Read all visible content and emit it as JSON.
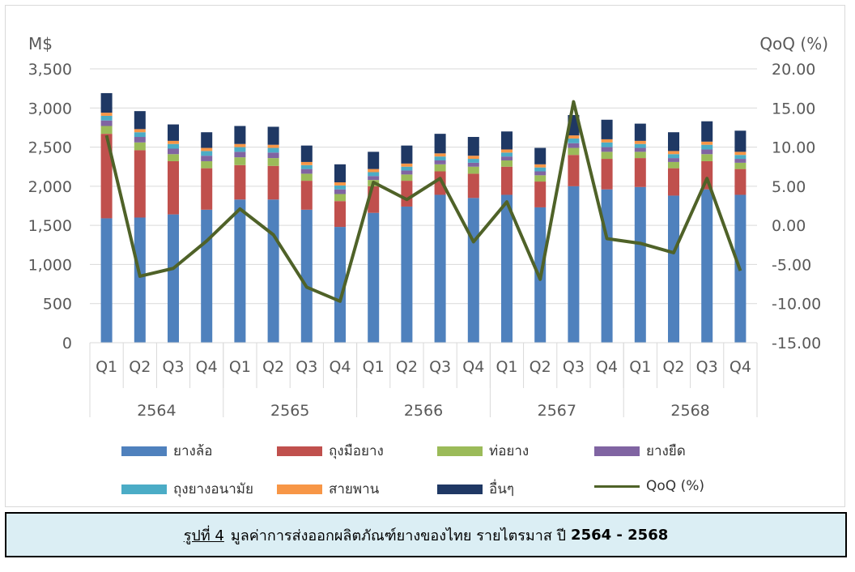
{
  "caption": {
    "label": "รูปที่ 4",
    "text": "มูลค่าการส่งออกผลิตภัณฑ์ยางของไทย รายไตรมาส ปี",
    "years": "2564 - 2568"
  },
  "chart_data": {
    "type": "bar",
    "stacked": true,
    "y_left_unit": "M$",
    "y_right_unit": "QoQ (%)",
    "ylim_left": [
      0,
      3500
    ],
    "yticks_left": [
      "0",
      "500",
      "1,000",
      "1,500",
      "2,000",
      "2,500",
      "3,000",
      "3,500"
    ],
    "ylim_right": [
      -15,
      20
    ],
    "yticks_right": [
      "-15.00",
      "-10.00",
      "-5.00",
      "0.00",
      "5.00",
      "10.00",
      "15.00",
      "20.00"
    ],
    "years": [
      "2564",
      "2565",
      "2566",
      "2567",
      "2568"
    ],
    "quarters": [
      "Q1",
      "Q2",
      "Q3",
      "Q4"
    ],
    "categories": [
      "2564 Q1",
      "2564 Q2",
      "2564 Q3",
      "2564 Q4",
      "2565 Q1",
      "2565 Q2",
      "2565 Q3",
      "2565 Q4",
      "2566 Q1",
      "2566 Q2",
      "2566 Q3",
      "2566 Q4",
      "2567 Q1",
      "2567 Q2",
      "2567 Q3",
      "2567 Q4",
      "2568 Q1",
      "2568 Q2",
      "2568 Q3",
      "2568 Q4"
    ],
    "grid": true,
    "legend_position": "bottom",
    "series": [
      {
        "name": "ยางล้อ",
        "color": "#4f81bd",
        "values": [
          1590,
          1600,
          1640,
          1700,
          1830,
          1830,
          1700,
          1480,
          1660,
          1740,
          1890,
          1850,
          1890,
          1730,
          2000,
          1960,
          1990,
          1880,
          1960,
          1890
        ]
      },
      {
        "name": "ถุงมือยาง",
        "color": "#c0504d",
        "values": [
          1080,
          860,
          680,
          530,
          440,
          430,
          370,
          330,
          340,
          330,
          300,
          310,
          360,
          330,
          400,
          390,
          370,
          350,
          360,
          330
        ]
      },
      {
        "name": "ท่อยาง",
        "color": "#9bbb59",
        "values": [
          100,
          100,
          90,
          90,
          100,
          100,
          90,
          90,
          80,
          80,
          90,
          90,
          80,
          80,
          90,
          90,
          80,
          80,
          90,
          80
        ]
      },
      {
        "name": "ยางยืด",
        "color": "#8064a2",
        "values": [
          70,
          70,
          70,
          70,
          70,
          70,
          60,
          60,
          50,
          50,
          50,
          50,
          50,
          50,
          60,
          60,
          50,
          50,
          60,
          50
        ]
      },
      {
        "name": "ถุงยางอนามัย",
        "color": "#4bacc6",
        "values": [
          60,
          60,
          60,
          60,
          60,
          60,
          50,
          50,
          50,
          50,
          50,
          50,
          50,
          50,
          60,
          60,
          50,
          50,
          60,
          50
        ]
      },
      {
        "name": "สายพาน",
        "color": "#f79646",
        "values": [
          40,
          40,
          40,
          40,
          40,
          40,
          40,
          40,
          40,
          40,
          40,
          40,
          40,
          40,
          40,
          40,
          40,
          40,
          40,
          40
        ]
      },
      {
        "name": "อื่นๆ",
        "color": "#1f3864",
        "values": [
          250,
          230,
          210,
          200,
          230,
          230,
          210,
          230,
          220,
          230,
          250,
          240,
          230,
          210,
          260,
          250,
          220,
          240,
          260,
          270
        ]
      }
    ],
    "line": {
      "name": "QoQ (%)",
      "color": "#4f6228",
      "axis": "right",
      "values": [
        11.5,
        -6.5,
        -5.5,
        -2.0,
        2.1,
        -1.2,
        -7.9,
        -9.7,
        5.5,
        3.3,
        6.0,
        -2.1,
        3.0,
        -6.9,
        15.8,
        -1.7,
        -2.3,
        -3.5,
        6.0,
        -5.8
      ]
    }
  }
}
